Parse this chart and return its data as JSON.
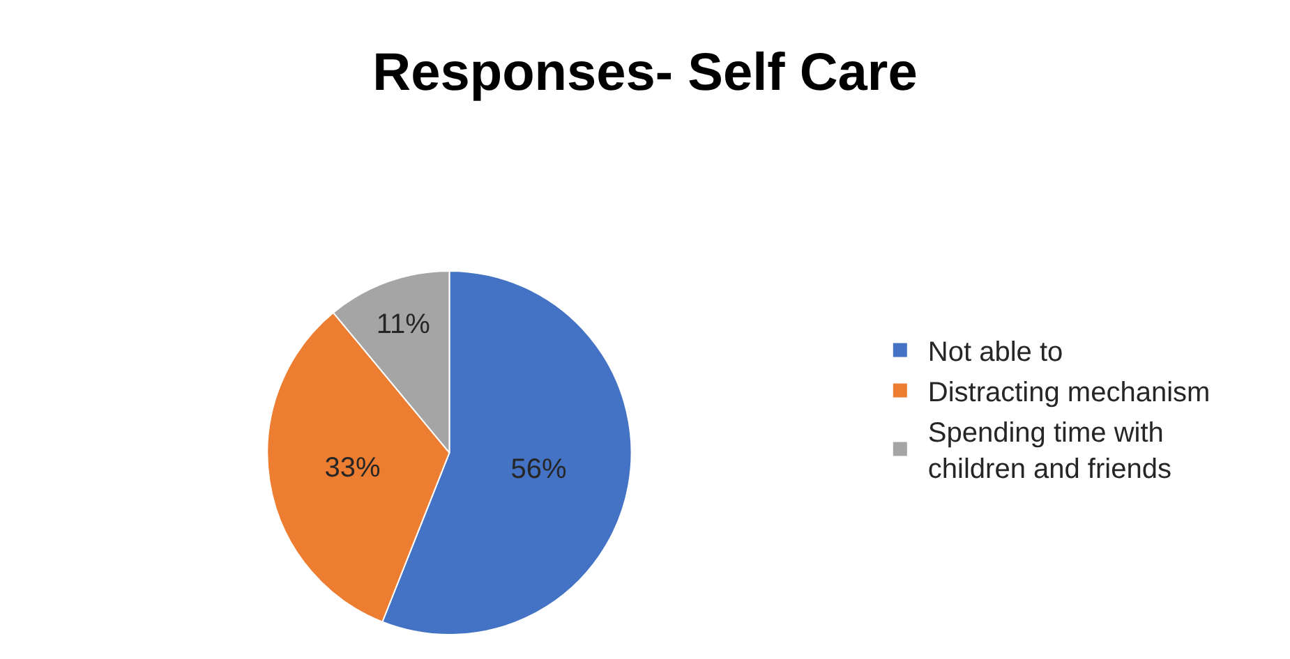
{
  "chart_data": {
    "type": "pie",
    "title": "Responses- Self Care",
    "categories": [
      "Not able to",
      "Distracting mechanism",
      "Spending time with children and friends"
    ],
    "values": [
      56,
      33,
      11
    ],
    "value_labels": [
      "56%",
      "33%",
      "11%"
    ],
    "colors": [
      "#4472c4",
      "#ed7d31",
      "#a5a5a5"
    ],
    "legend": "right"
  }
}
